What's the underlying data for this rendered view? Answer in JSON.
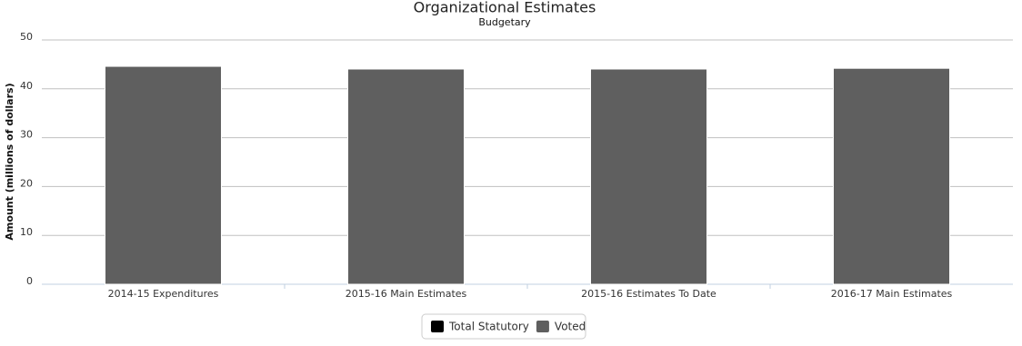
{
  "chart_data": {
    "type": "stacked_bar",
    "title": "Organizational Estimates",
    "subtitle": "Budgetary",
    "y_label": "Amount (millions of dollars)",
    "categories": [
      "2014-15 Expenditures",
      "2015-16 Main Estimates",
      "2015-16 Estimates To Date",
      "2016-17 Main Estimates"
    ],
    "series": [
      {
        "name": "Total Statutory",
        "color": "#000000",
        "values": [
          0,
          0,
          0,
          0
        ]
      },
      {
        "name": "Voted",
        "color": "#5f5f5f",
        "values": [
          44.6,
          44.05,
          44.05,
          44.2
        ]
      }
    ],
    "ylim": [
      0,
      50
    ],
    "yticks": [
      0,
      10,
      20,
      30,
      40,
      50
    ],
    "grid": true,
    "legend": "bottom"
  }
}
